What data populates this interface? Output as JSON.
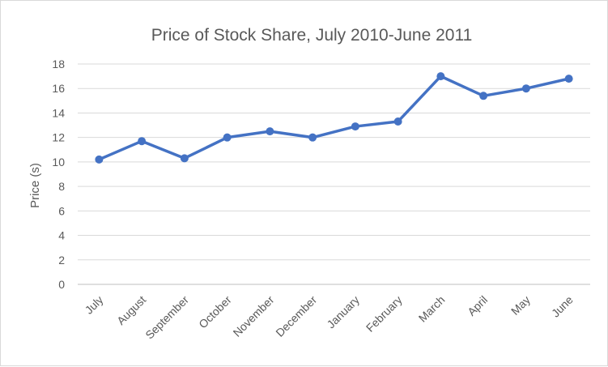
{
  "chart_data": {
    "type": "line",
    "title": "Price of Stock Share, July 2010-June 2011",
    "xlabel": "",
    "ylabel": "Price (s)",
    "categories": [
      "July",
      "August",
      "September",
      "October",
      "November",
      "December",
      "January",
      "February",
      "March",
      "April",
      "May",
      "June"
    ],
    "series": [
      {
        "values": [
          10.2,
          11.7,
          10.3,
          12.0,
          12.5,
          12.0,
          12.9,
          13.3,
          17.0,
          15.4,
          16.0,
          16.8
        ],
        "color": "#4472c4"
      }
    ],
    "ylim": [
      0,
      18
    ],
    "yticks": [
      "0",
      "2",
      "4",
      "6",
      "8",
      "10",
      "12",
      "14",
      "16",
      "18"
    ],
    "grid": true,
    "legend": "none"
  }
}
